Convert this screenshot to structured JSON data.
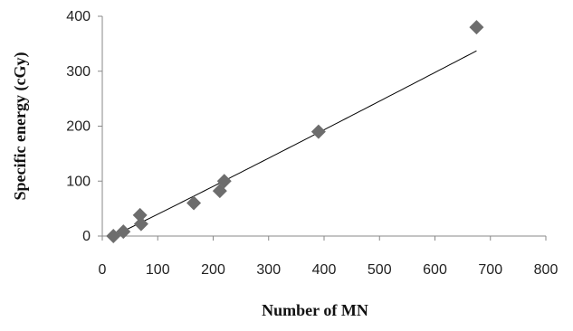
{
  "chart_data": {
    "type": "scatter",
    "title": "",
    "xlabel": "Number of MN",
    "ylabel": "Specific energy (cGy)",
    "xlim": [
      0,
      800
    ],
    "ylim": [
      0,
      400
    ],
    "x_ticks": [
      0,
      100,
      200,
      300,
      400,
      500,
      600,
      700,
      800
    ],
    "y_ticks": [
      0,
      100,
      200,
      300,
      400
    ],
    "x_tick_labels": [
      "0",
      "100",
      "200",
      "300",
      "400",
      "500",
      "600",
      "700",
      "800"
    ],
    "y_tick_labels": [
      "0",
      "100",
      "200",
      "300",
      "400"
    ],
    "grid": false,
    "legend": "none",
    "marker": "diamond",
    "marker_color": "#6d6d6d",
    "trendline": {
      "type": "curve",
      "color": "#000000"
    },
    "series": [
      {
        "x": [
          20,
          38,
          68,
          70,
          165,
          212,
          220,
          390,
          675
        ],
        "y": [
          0,
          8,
          38,
          22,
          60,
          82,
          100,
          190,
          380
        ]
      }
    ]
  }
}
